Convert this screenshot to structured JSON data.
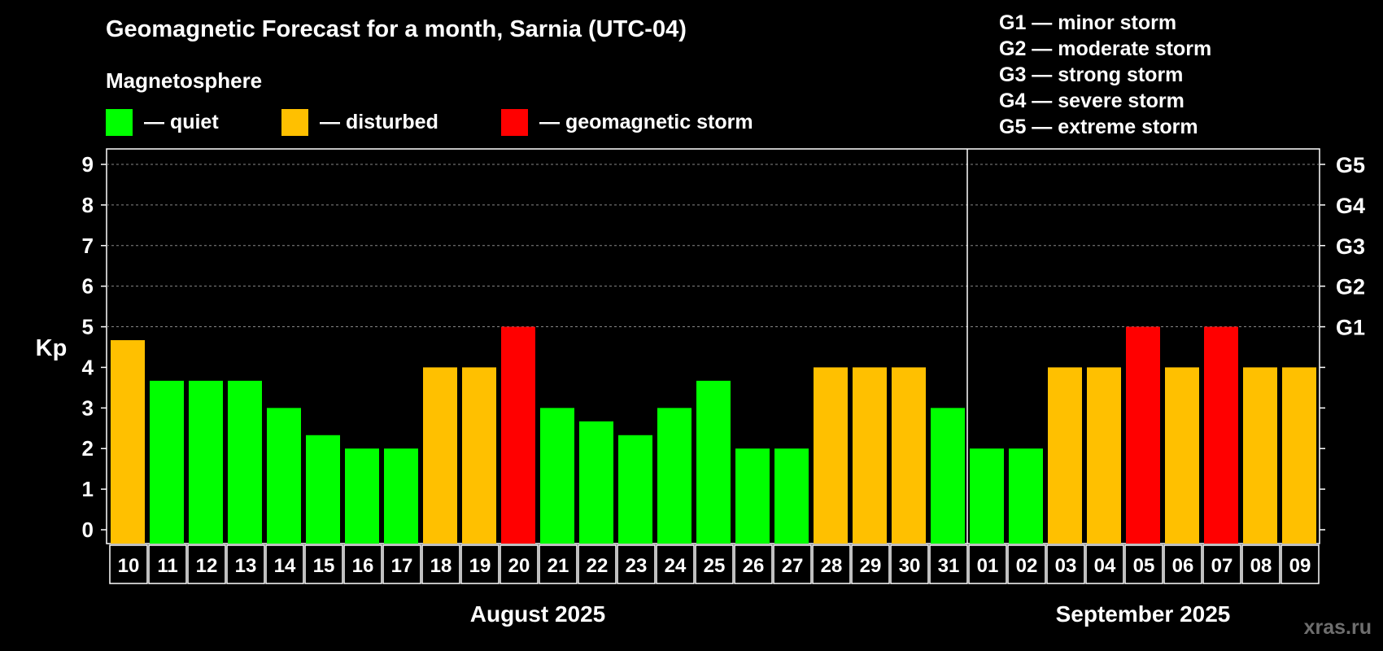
{
  "page_title": "Geomagnetic Forecast for a month, Sarnia (UTC-04)",
  "legend": {
    "title": "Magnetosphere",
    "items": [
      {
        "label": "— quiet",
        "color": "#00ff00"
      },
      {
        "label": "— disturbed",
        "color": "#ffc000"
      },
      {
        "label": "— geomagnetic storm",
        "color": "#ff0000"
      }
    ]
  },
  "g_levels": [
    "G1 — minor storm",
    "G2 — moderate storm",
    "G3 — strong storm",
    "G4 — severe storm",
    "G5 — extreme storm"
  ],
  "watermark": "xras.ru",
  "chart_data": {
    "type": "bar",
    "title": "Geomagnetic Forecast for a month, Sarnia (UTC-04)",
    "ylabel": "Kp",
    "ylim": [
      0,
      9
    ],
    "yticks": [
      "0",
      "1",
      "2",
      "3",
      "4",
      "5",
      "6",
      "7",
      "8",
      "9"
    ],
    "grid": "dashed horizontal lines at 5 to 9",
    "right_axis_labels": [
      {
        "kp": 5,
        "label": "G1"
      },
      {
        "kp": 6,
        "label": "G2"
      },
      {
        "kp": 7,
        "label": "G3"
      },
      {
        "kp": 8,
        "label": "G4"
      },
      {
        "kp": 9,
        "label": "G5"
      }
    ],
    "months": [
      {
        "label": "August 2025",
        "categories": [
          "10",
          "11",
          "12",
          "13",
          "14",
          "15",
          "16",
          "17",
          "18",
          "19",
          "20",
          "21",
          "22",
          "23",
          "24",
          "25",
          "26",
          "27",
          "28",
          "29",
          "30",
          "31"
        ]
      },
      {
        "label": "September 2025",
        "categories": [
          "01",
          "02",
          "03",
          "04",
          "05",
          "06",
          "07",
          "08",
          "09"
        ]
      }
    ],
    "categories": [
      "10",
      "11",
      "12",
      "13",
      "14",
      "15",
      "16",
      "17",
      "18",
      "19",
      "20",
      "21",
      "22",
      "23",
      "24",
      "25",
      "26",
      "27",
      "28",
      "29",
      "30",
      "31",
      "01",
      "02",
      "03",
      "04",
      "05",
      "06",
      "07",
      "08",
      "09"
    ],
    "values": [
      4.67,
      3.67,
      3.67,
      3.67,
      3.0,
      2.33,
      2.0,
      2.0,
      4.0,
      4.0,
      5.0,
      3.0,
      2.67,
      2.33,
      3.0,
      3.67,
      2.0,
      2.0,
      4.0,
      4.0,
      4.0,
      3.0,
      2.0,
      2.0,
      4.0,
      4.0,
      5.0,
      4.0,
      5.0,
      4.0,
      4.0
    ],
    "status": [
      "disturbed",
      "quiet",
      "quiet",
      "quiet",
      "quiet",
      "quiet",
      "quiet",
      "quiet",
      "disturbed",
      "disturbed",
      "storm",
      "quiet",
      "quiet",
      "quiet",
      "quiet",
      "quiet",
      "quiet",
      "quiet",
      "disturbed",
      "disturbed",
      "disturbed",
      "quiet",
      "quiet",
      "quiet",
      "disturbed",
      "disturbed",
      "storm",
      "disturbed",
      "storm",
      "disturbed",
      "disturbed"
    ],
    "status_colors": {
      "quiet": "#00ff00",
      "disturbed": "#ffc000",
      "storm": "#ff0000"
    }
  }
}
